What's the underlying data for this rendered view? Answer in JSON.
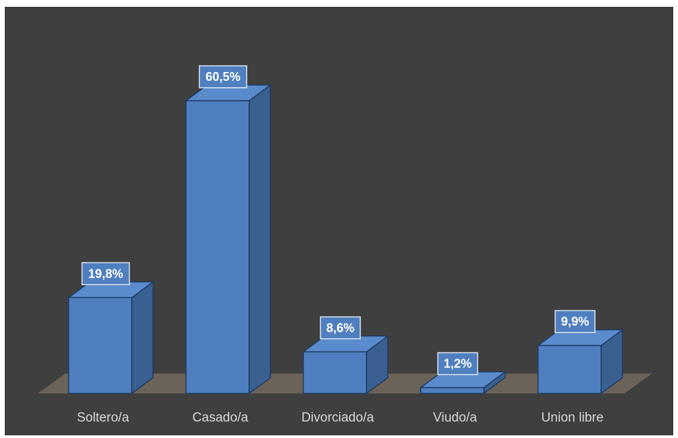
{
  "chart_data": {
    "type": "bar",
    "style": "3d-column",
    "categories": [
      "Soltero/a",
      "Casado/a",
      "Divorciado/a",
      "Viudo/a",
      "Union libre"
    ],
    "values": [
      19.8,
      60.5,
      8.6,
      1.2,
      9.9
    ],
    "data_labels": [
      "19,8%",
      "60,5%",
      "8,6%",
      "1,2%",
      "9,9%"
    ],
    "unit": "%",
    "ylim": [
      0,
      60.5
    ],
    "title": "",
    "xlabel": "",
    "ylabel": "",
    "grid": false,
    "legend": "none",
    "colors": {
      "background": "#3f3f3f",
      "floor": "#6b6357",
      "bar_front": "#4f7fbf",
      "bar_side": "#3a5f91",
      "bar_top": "#5a8bcc",
      "bar_edge": "#1f3b63",
      "label_box": "#4f7fbf",
      "label_border": "#dfe7f2",
      "label_text": "#ffffff",
      "tick_text": "#d9d9d9"
    }
  }
}
